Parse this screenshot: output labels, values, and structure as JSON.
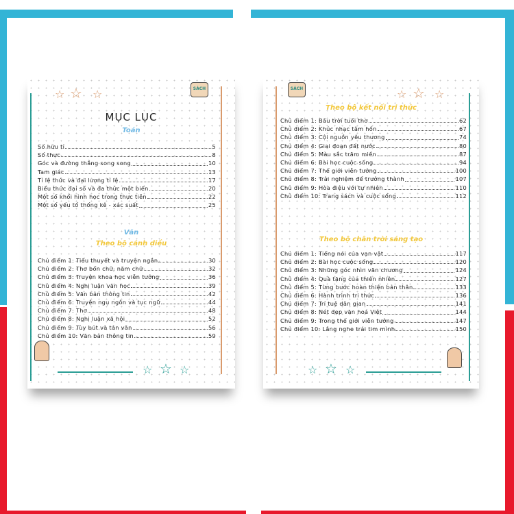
{
  "colors": {
    "frame_top": "#33b4d6",
    "frame_bottom": "#e8192c",
    "teal": "#2a9d95",
    "orange": "#d99a6c",
    "blue_heading": "#6fb8e4",
    "yellow_heading": "#f2c73a"
  },
  "left_page": {
    "title": "MỤC LỤC",
    "math_heading": "Toán",
    "math_items": [
      {
        "t": "Số hữu tỉ",
        "p": "5"
      },
      {
        "t": "Số thực",
        "p": "8"
      },
      {
        "t": "Góc và đường thẳng song song",
        "p": "10"
      },
      {
        "t": "Tam giác",
        "p": "13"
      },
      {
        "t": "Tỉ lệ thức và đại lượng tỉ lệ",
        "p": "17"
      },
      {
        "t": "Biểu thức đại số và đa thức một biến",
        "p": "20"
      },
      {
        "t": "Một số khối hình học trong thực tiễn",
        "p": "22"
      },
      {
        "t": "Một số yếu tố thống kê - xác suất",
        "p": "25"
      }
    ],
    "lit_heading": "Văn",
    "set1_heading": "Theo bộ cánh diều",
    "set1_items": [
      {
        "t": "Chủ điểm 1: Tiểu thuyết và truyện ngắn",
        "p": "30"
      },
      {
        "t": "Chủ điểm 2: Thơ bốn chữ, năm chữ",
        "p": "32"
      },
      {
        "t": "Chủ điểm 3: Truyện khoa học viễn tưởng",
        "p": "36"
      },
      {
        "t": "Chủ điểm 4: Nghị luận văn học",
        "p": "39"
      },
      {
        "t": "Chủ điểm 5: Văn bản thông tin",
        "p": "42"
      },
      {
        "t": "Chủ điểm 6: Truyện ngụ ngôn và tục ngữ",
        "p": "44"
      },
      {
        "t": "Chủ điểm 7: Thơ",
        "p": "48"
      },
      {
        "t": "Chủ điểm 8: Nghị luận xã hội",
        "p": "52"
      },
      {
        "t": "Chủ điểm 9: Tùy bút và tản văn",
        "p": "56"
      },
      {
        "t": "Chủ điểm 10: Văn bản thông tin",
        "p": "59"
      }
    ]
  },
  "right_page": {
    "set2_heading": "Theo bộ kết nối tri thức",
    "set2_items": [
      {
        "t": "Chủ điểm 1: Bầu trời tuổi thơ",
        "p": "62"
      },
      {
        "t": "Chủ điểm 2: Khúc nhạc tâm hồn",
        "p": "67"
      },
      {
        "t": "Chủ điểm 3: Cội nguồn yêu thương",
        "p": "74"
      },
      {
        "t": "Chủ điểm 4: Giai đoạn đất nước",
        "p": "80"
      },
      {
        "t": "Chủ điểm 5: Màu sắc trăm miền",
        "p": "87"
      },
      {
        "t": "Chủ điểm 6: Bài học cuộc sống",
        "p": "94"
      },
      {
        "t": "Chủ điểm 7: Thế giới viễn tưởng",
        "p": "100"
      },
      {
        "t": "Chủ điểm 8: Trải nghiệm để trưởng thành",
        "p": "107"
      },
      {
        "t": "Chủ điểm 9: Hòa điệu với tự nhiên",
        "p": "110"
      },
      {
        "t": "Chủ điểm 10: Trang sách và cuộc sống",
        "p": "112"
      }
    ],
    "set3_heading": "Theo bộ chân trời sáng tạo",
    "set3_items": [
      {
        "t": "Chủ điểm 1: Tiếng nói của vạn vật",
        "p": "117"
      },
      {
        "t": "Chủ điểm 2: Bài học cuộc sống",
        "p": "120"
      },
      {
        "t": "Chủ điểm 3: Những góc nhìn văn chương",
        "p": "124"
      },
      {
        "t": "Chủ điểm 4: Quà tặng của thiên nhiên",
        "p": "127"
      },
      {
        "t": "Chủ điểm 5: Từng bước hoàn thiện bản thân",
        "p": "133"
      },
      {
        "t": "Chủ điểm 6: Hành trình tri thức",
        "p": "136"
      },
      {
        "t": "Chủ điểm 7: Trí tuệ dân gian",
        "p": "141"
      },
      {
        "t": "Chủ điểm 8: Nét đẹp văn hoá Việt",
        "p": "144"
      },
      {
        "t": "Chủ điểm 9: Trong thế giới viễn tưởng",
        "p": "147"
      },
      {
        "t": "Chủ điểm 10: Lắng nghe trái tim mình",
        "p": "150"
      }
    ]
  }
}
